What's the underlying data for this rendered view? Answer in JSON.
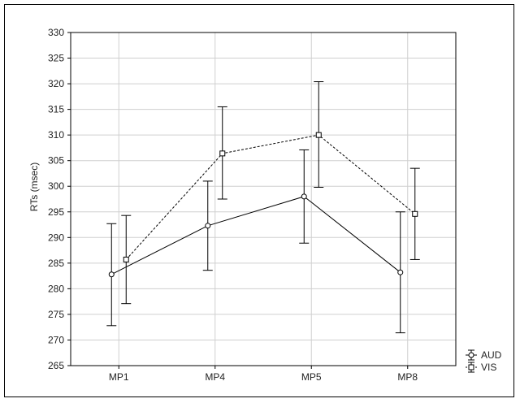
{
  "chart_data": {
    "type": "line",
    "title": "",
    "xlabel": "",
    "ylabel": "RTs (msec)",
    "categories": [
      "MP1",
      "MP4",
      "MP5",
      "MP8"
    ],
    "ylim": [
      265,
      330
    ],
    "yticks": [
      265,
      270,
      275,
      280,
      285,
      290,
      295,
      300,
      305,
      310,
      315,
      320,
      325,
      330
    ],
    "grid": true,
    "legend_position": "bottom-right",
    "series": [
      {
        "name": "AUD",
        "marker": "circle",
        "line_style": "solid",
        "values": [
          282.8,
          292.3,
          298.0,
          283.2
        ],
        "err_low": [
          272.8,
          283.6,
          288.9,
          271.4
        ],
        "err_high": [
          292.7,
          301.0,
          307.1,
          295.0
        ]
      },
      {
        "name": "VIS",
        "marker": "square",
        "line_style": "dashed",
        "values": [
          285.7,
          306.4,
          310.0,
          294.6
        ],
        "err_low": [
          277.1,
          297.5,
          299.8,
          285.7
        ],
        "err_high": [
          294.3,
          315.5,
          320.4,
          303.5
        ]
      }
    ],
    "colors": {
      "line": "#000000",
      "grid": "#cfcfcf",
      "marker_fill": "#ffffff"
    }
  }
}
